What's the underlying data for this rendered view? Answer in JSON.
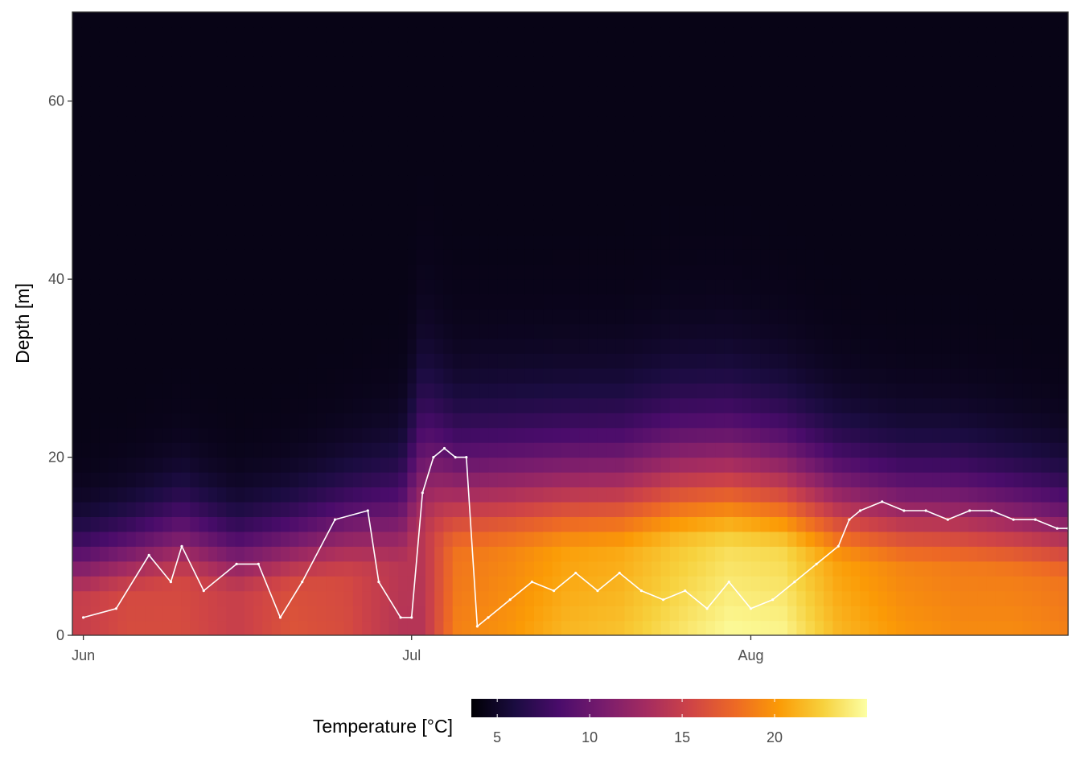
{
  "chart_data": {
    "type": "heatmap",
    "title": "",
    "xlabel": "",
    "ylabel": "Depth [m]",
    "x_range": [
      "2020-05-31",
      "2020-08-30"
    ],
    "ylim": [
      0,
      70
    ],
    "x_ticks": [
      {
        "date": "2020-06-01",
        "label": "Jun"
      },
      {
        "date": "2020-07-01",
        "label": "Jul"
      },
      {
        "date": "2020-08-01",
        "label": "Aug"
      }
    ],
    "y_ticks": [
      0,
      20,
      40,
      60
    ],
    "grid": false,
    "legend": {
      "title": "Temperature [°C]",
      "position": "bottom",
      "ticks": [
        5,
        10,
        15,
        20
      ],
      "range": [
        3.6,
        25
      ],
      "palette": "inferno",
      "colors": [
        "#000004",
        "#1b0c41",
        "#4a0c6b",
        "#781c6d",
        "#a52c60",
        "#cf4446",
        "#ed6925",
        "#fb9b06",
        "#f7d13d",
        "#fcffa4"
      ]
    },
    "profiles": [
      {
        "date": "2020-06-01",
        "surface_temp": 15,
        "thermocline_depth": 7
      },
      {
        "date": "2020-06-05",
        "surface_temp": 16,
        "thermocline_depth": 8
      },
      {
        "date": "2020-06-10",
        "surface_temp": 16,
        "thermocline_depth": 10
      },
      {
        "date": "2020-06-15",
        "surface_temp": 15,
        "thermocline_depth": 8
      },
      {
        "date": "2020-06-20",
        "surface_temp": 16.5,
        "thermocline_depth": 9
      },
      {
        "date": "2020-06-25",
        "surface_temp": 16,
        "thermocline_depth": 11
      },
      {
        "date": "2020-06-30",
        "surface_temp": 14,
        "thermocline_depth": 13
      },
      {
        "date": "2020-07-02",
        "surface_temp": 14,
        "thermocline_depth": 20
      },
      {
        "date": "2020-07-05",
        "surface_temp": 19,
        "thermocline_depth": 16
      },
      {
        "date": "2020-07-10",
        "surface_temp": 20,
        "thermocline_depth": 16
      },
      {
        "date": "2020-07-15",
        "surface_temp": 21.5,
        "thermocline_depth": 16
      },
      {
        "date": "2020-07-20",
        "surface_temp": 22,
        "thermocline_depth": 16
      },
      {
        "date": "2020-07-25",
        "surface_temp": 23.5,
        "thermocline_depth": 17
      },
      {
        "date": "2020-07-30",
        "surface_temp": 24.8,
        "thermocline_depth": 17
      },
      {
        "date": "2020-08-04",
        "surface_temp": 24.5,
        "thermocline_depth": 16
      },
      {
        "date": "2020-08-09",
        "surface_temp": 21.5,
        "thermocline_depth": 14
      },
      {
        "date": "2020-08-15",
        "surface_temp": 20,
        "thermocline_depth": 13
      },
      {
        "date": "2020-08-20",
        "surface_temp": 19.5,
        "thermocline_depth": 13
      },
      {
        "date": "2020-08-25",
        "surface_temp": 19.5,
        "thermocline_depth": 12
      },
      {
        "date": "2020-08-30",
        "surface_temp": 19,
        "thermocline_depth": 11
      }
    ],
    "series": [
      {
        "type": "line",
        "color": "#ffffff",
        "x": [
          "2020-06-01",
          "2020-06-04",
          "2020-06-07",
          "2020-06-09",
          "2020-06-10",
          "2020-06-12",
          "2020-06-15",
          "2020-06-17",
          "2020-06-19",
          "2020-06-21",
          "2020-06-24",
          "2020-06-27",
          "2020-06-28",
          "2020-06-30",
          "2020-07-01",
          "2020-07-02",
          "2020-07-03",
          "2020-07-04",
          "2020-07-05",
          "2020-07-06",
          "2020-07-07",
          "2020-07-08",
          "2020-07-10",
          "2020-07-12",
          "2020-07-14",
          "2020-07-16",
          "2020-07-18",
          "2020-07-20",
          "2020-07-22",
          "2020-07-24",
          "2020-07-26",
          "2020-07-28",
          "2020-07-30",
          "2020-08-01",
          "2020-08-03",
          "2020-08-05",
          "2020-08-07",
          "2020-08-09",
          "2020-08-10",
          "2020-08-11",
          "2020-08-13",
          "2020-08-15",
          "2020-08-17",
          "2020-08-19",
          "2020-08-21",
          "2020-08-23",
          "2020-08-25",
          "2020-08-27",
          "2020-08-29",
          "2020-08-30"
        ],
        "y": [
          2,
          3,
          9,
          6,
          10,
          5,
          8,
          8,
          2,
          6,
          13,
          14,
          6,
          2,
          2,
          16,
          20,
          21,
          20,
          20,
          1,
          2,
          4,
          6,
          5,
          7,
          5,
          7,
          5,
          4,
          5,
          3,
          6,
          3,
          4,
          6,
          8,
          10,
          13,
          14,
          15,
          14,
          14,
          13,
          14,
          14,
          13,
          13,
          12,
          12
        ]
      }
    ]
  }
}
